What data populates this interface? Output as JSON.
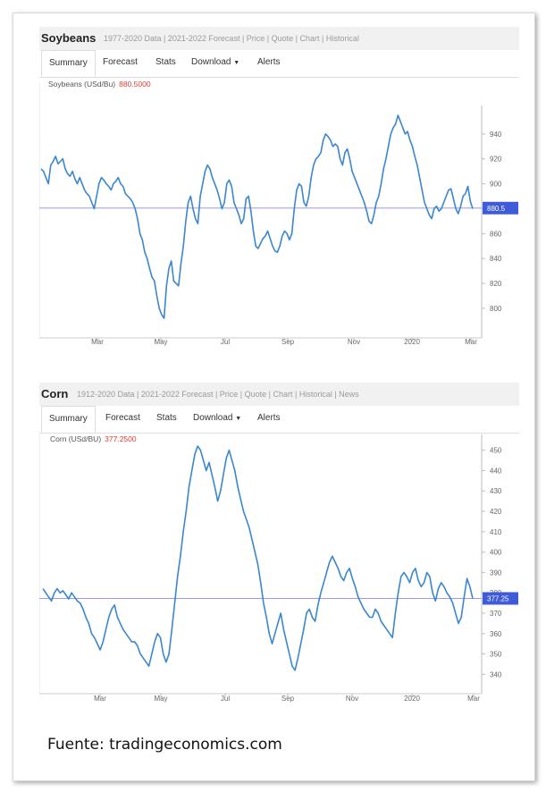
{
  "source": "Fuente: tradingeconomics.com",
  "panels": [
    {
      "name": "Soybeans",
      "links": "1977-2020 Data | 2021-2022 Forecast | Price | Quote | Chart | Historical",
      "tabs": [
        "Summary",
        "Forecast",
        "Stats",
        "Download",
        "Alerts"
      ],
      "legend_label": "Soybeans (USd/Bu)",
      "legend_value": "880.5000",
      "chart_data": {
        "type": "line",
        "title": "Soybeans",
        "ylabel": "USd/Bu",
        "ylim": [
          782,
          960
        ],
        "yticks": [
          800,
          820,
          840,
          860,
          880,
          900,
          920,
          940
        ],
        "xticks": [
          "Mar",
          "May",
          "Jul",
          "Sep",
          "Nov",
          "2020",
          "Mar"
        ],
        "last_value": 880.5,
        "last_label": "880.5",
        "colors": {
          "line": "#3a86cf",
          "refline": "#9a9af0",
          "label_bg": "#3f5bd8"
        },
        "series": [
          {
            "values": [
              912,
              910,
              905,
              900,
              915,
              918,
              922,
              916,
              918,
              920,
              912,
              908,
              906,
              910,
              904,
              900,
              905,
              900,
              895,
              892,
              890,
              885,
              880,
              890,
              900,
              905,
              903,
              900,
              898,
              895,
              900,
              902,
              905,
              900,
              898,
              892,
              890,
              888,
              885,
              880,
              872,
              860,
              855,
              845,
              840,
              832,
              825,
              822,
              810,
              800,
              795,
              792,
              818,
              832,
              838,
              822,
              820,
              818,
              836,
              850,
              870,
              885,
              890,
              880,
              872,
              868,
              890,
              900,
              910,
              915,
              912,
              905,
              900,
              895,
              888,
              880,
              885,
              900,
              903,
              898,
              885,
              880,
              875,
              868,
              872,
              888,
              890,
              878,
              862,
              850,
              848,
              852,
              856,
              858,
              862,
              856,
              850,
              846,
              845,
              850,
              858,
              862,
              860,
              855,
              860,
              880,
              895,
              900,
              898,
              885,
              882,
              890,
              905,
              915,
              920,
              922,
              925,
              935,
              940,
              938,
              935,
              930,
              932,
              930,
              920,
              915,
              925,
              928,
              920,
              910,
              905,
              900,
              895,
              890,
              885,
              878,
              870,
              868,
              875,
              885,
              890,
              900,
              912,
              920,
              930,
              940,
              945,
              948,
              955,
              950,
              945,
              940,
              942,
              935,
              930,
              922,
              915,
              905,
              895,
              885,
              880,
              875,
              872,
              880,
              882,
              878,
              880,
              885,
              890,
              895,
              896,
              888,
              880,
              876,
              882,
              890,
              892,
              898,
              886,
              880
            ]
          }
        ]
      }
    },
    {
      "name": "Corn",
      "links": "1912-2020 Data | 2021-2022 Forecast | Price | Quote | Chart | Historical | News",
      "tabs": [
        "Summary",
        "Forecast",
        "Stats",
        "Download",
        "Alerts"
      ],
      "legend_label": "Corn (USd/BU)",
      "legend_value": "377.2500",
      "chart_data": {
        "type": "line",
        "title": "Corn",
        "ylabel": "USd/BU",
        "ylim": [
          334,
          456
        ],
        "yticks": [
          340,
          350,
          360,
          370,
          380,
          390,
          400,
          410,
          420,
          430,
          440,
          450
        ],
        "xticks": [
          "Mar",
          "May",
          "Jul",
          "Sep",
          "Nov",
          "2020",
          "Mar"
        ],
        "last_value": 377.25,
        "last_label": "377.25",
        "colors": {
          "line": "#3a86cf",
          "refline": "#9a9af0",
          "label_bg": "#3f5bd8"
        },
        "series": [
          {
            "values": [
              382,
              380,
              378,
              376,
              380,
              382,
              380,
              381,
              379,
              377,
              380,
              378,
              376,
              375,
              372,
              368,
              365,
              360,
              358,
              355,
              352,
              356,
              362,
              368,
              372,
              374,
              368,
              365,
              362,
              360,
              358,
              356,
              356,
              354,
              350,
              348,
              346,
              344,
              350,
              356,
              360,
              358,
              350,
              346,
              350,
              362,
              375,
              388,
              398,
              410,
              420,
              432,
              440,
              448,
              452,
              450,
              445,
              440,
              444,
              438,
              432,
              425,
              430,
              438,
              446,
              450,
              445,
              440,
              432,
              426,
              420,
              416,
              412,
              406,
              400,
              394,
              385,
              375,
              368,
              360,
              355,
              360,
              365,
              370,
              362,
              356,
              350,
              344,
              342,
              348,
              355,
              362,
              370,
              372,
              368,
              366,
              374,
              380,
              385,
              390,
              395,
              398,
              395,
              392,
              388,
              386,
              390,
              392,
              387,
              383,
              378,
              375,
              372,
              370,
              368,
              368,
              372,
              370,
              366,
              364,
              362,
              360,
              358,
              370,
              380,
              388,
              390,
              388,
              385,
              390,
              392,
              386,
              383,
              385,
              390,
              388,
              380,
              376,
              382,
              385,
              383,
              380,
              378,
              375,
              370,
              365,
              368,
              378,
              387,
              383,
              377.25
            ]
          }
        ]
      }
    }
  ]
}
